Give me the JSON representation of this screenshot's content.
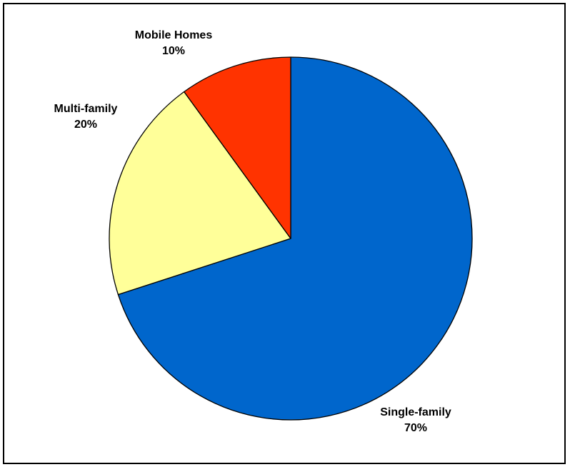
{
  "chart_data": {
    "type": "pie",
    "slices": [
      {
        "label": "Single-family",
        "value": 70,
        "value_label": "70%",
        "color": "#0066CC"
      },
      {
        "label": "Multi-family",
        "value": 20,
        "value_label": "20%",
        "color": "#FFFF99"
      },
      {
        "label": "Mobile Homes",
        "value": 10,
        "value_label": "10%",
        "color": "#FF3300"
      }
    ],
    "start_angle_deg": 0,
    "direction": "clockwise",
    "legend": "none",
    "labels": "outside"
  }
}
